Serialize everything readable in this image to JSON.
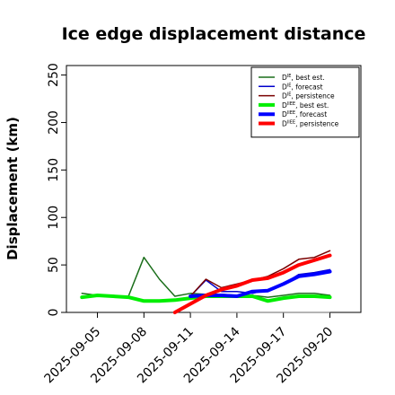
{
  "chart_data": {
    "type": "line",
    "title": "Ice edge displacement distance",
    "xlabel": "",
    "ylabel": "Displacement (km)",
    "ylim": [
      0,
      260
    ],
    "yticks": [
      0,
      50,
      100,
      150,
      200,
      250
    ],
    "xlim": [
      "2025-09-03",
      "2025-09-22"
    ],
    "xticks": [
      "2025-09-05",
      "2025-09-08",
      "2025-09-11",
      "2025-09-14",
      "2025-09-17",
      "2025-09-20"
    ],
    "highlighted_xtick": "2025-09-11",
    "highlight_color": "#228b22",
    "grid": false,
    "legend_position": "top-right",
    "reference_line": {
      "y": 0,
      "from": "2025-09-11",
      "to": "2025-09-20",
      "color": "#888888"
    },
    "series": [
      {
        "name": "D",
        "sup": "IE",
        "suffix": ", best est.",
        "color": "#1a6e1a",
        "width": 1.5,
        "points": [
          [
            "2025-09-04",
            20
          ],
          [
            "2025-09-05",
            18
          ],
          [
            "2025-09-06",
            17
          ],
          [
            "2025-09-07",
            17
          ],
          [
            "2025-09-08",
            58
          ],
          [
            "2025-09-09",
            35
          ],
          [
            "2025-09-10",
            17
          ],
          [
            "2025-09-11",
            20
          ],
          [
            "2025-09-12",
            19
          ],
          [
            "2025-09-13",
            19
          ],
          [
            "2025-09-14",
            18
          ],
          [
            "2025-09-15",
            18
          ],
          [
            "2025-09-16",
            16
          ],
          [
            "2025-09-17",
            18
          ],
          [
            "2025-09-18",
            20
          ],
          [
            "2025-09-19",
            20
          ],
          [
            "2025-09-20",
            18
          ]
        ]
      },
      {
        "name": "D",
        "sup": "IE",
        "suffix": ", forecast",
        "color": "#0000cc",
        "width": 1.5,
        "points": [
          [
            "2025-09-11",
            17
          ],
          [
            "2025-09-12",
            34
          ],
          [
            "2025-09-13",
            22
          ],
          [
            "2025-09-14",
            22
          ],
          [
            "2025-09-15",
            20
          ],
          [
            "2025-09-16",
            24
          ],
          [
            "2025-09-17",
            30
          ],
          [
            "2025-09-18",
            40
          ],
          [
            "2025-09-19",
            42
          ],
          [
            "2025-09-20",
            45
          ]
        ]
      },
      {
        "name": "D",
        "sup": "IE",
        "suffix": ", persistence",
        "color": "#7a0000",
        "width": 1.5,
        "points": [
          [
            "2025-09-11",
            17
          ],
          [
            "2025-09-12",
            35
          ],
          [
            "2025-09-13",
            26
          ],
          [
            "2025-09-14",
            30
          ],
          [
            "2025-09-15",
            34
          ],
          [
            "2025-09-16",
            38
          ],
          [
            "2025-09-17",
            46
          ],
          [
            "2025-09-18",
            56
          ],
          [
            "2025-09-19",
            58
          ],
          [
            "2025-09-20",
            65
          ]
        ]
      },
      {
        "name": "D",
        "sup": "IIEE",
        "suffix": ", best est.",
        "color": "#00ee00",
        "width": 4,
        "points": [
          [
            "2025-09-04",
            16
          ],
          [
            "2025-09-05",
            18
          ],
          [
            "2025-09-06",
            17
          ],
          [
            "2025-09-07",
            16
          ],
          [
            "2025-09-08",
            12
          ],
          [
            "2025-09-09",
            12
          ],
          [
            "2025-09-10",
            13
          ],
          [
            "2025-09-11",
            15
          ],
          [
            "2025-09-12",
            17
          ],
          [
            "2025-09-13",
            17
          ],
          [
            "2025-09-14",
            17
          ],
          [
            "2025-09-15",
            17
          ],
          [
            "2025-09-16",
            12
          ],
          [
            "2025-09-17",
            15
          ],
          [
            "2025-09-18",
            17
          ],
          [
            "2025-09-19",
            17
          ],
          [
            "2025-09-20",
            16
          ]
        ]
      },
      {
        "name": "D",
        "sup": "IIEE",
        "suffix": ", forecast",
        "color": "#0000ff",
        "width": 4,
        "points": [
          [
            "2025-09-11",
            17
          ],
          [
            "2025-09-12",
            18
          ],
          [
            "2025-09-13",
            18
          ],
          [
            "2025-09-14",
            17
          ],
          [
            "2025-09-15",
            22
          ],
          [
            "2025-09-16",
            23
          ],
          [
            "2025-09-17",
            30
          ],
          [
            "2025-09-18",
            38
          ],
          [
            "2025-09-19",
            40
          ],
          [
            "2025-09-20",
            43
          ]
        ]
      },
      {
        "name": "D",
        "sup": "IIEE",
        "suffix": ", persistence",
        "color": "#ff0000",
        "width": 4,
        "points": [
          [
            "2025-09-10",
            0
          ],
          [
            "2025-09-11",
            9
          ],
          [
            "2025-09-12",
            18
          ],
          [
            "2025-09-13",
            24
          ],
          [
            "2025-09-14",
            28
          ],
          [
            "2025-09-15",
            34
          ],
          [
            "2025-09-16",
            36
          ],
          [
            "2025-09-17",
            42
          ],
          [
            "2025-09-18",
            50
          ],
          [
            "2025-09-19",
            55
          ],
          [
            "2025-09-20",
            60
          ]
        ]
      }
    ]
  }
}
